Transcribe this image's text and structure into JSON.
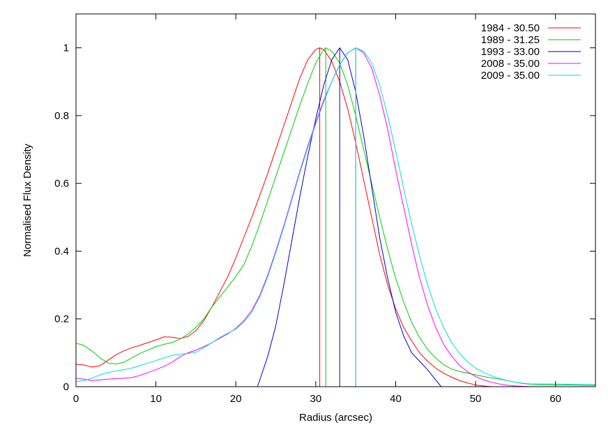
{
  "chart_data": {
    "type": "line",
    "title": "",
    "xlabel": "Radius (arcsec)",
    "ylabel": "Normalised Flux Density",
    "xlim": [
      0,
      65
    ],
    "ylim": [
      0,
      1.1
    ],
    "xticks": [
      0,
      10,
      20,
      30,
      40,
      50,
      60
    ],
    "yticks": [
      0,
      0.2,
      0.4,
      0.6,
      0.8,
      1
    ],
    "ytick_labels": [
      "0",
      "0.2",
      "0.4",
      "0.6",
      "0.8",
      "1"
    ],
    "xtick_labels": [
      "0",
      "10",
      "20",
      "30",
      "40",
      "50",
      "60"
    ],
    "grid": false,
    "legend_position": "top-right",
    "series": [
      {
        "name": "1984 - 30.50",
        "color": "#ff0000",
        "peak_x": 30.5,
        "points": [
          [
            0,
            0.066
          ],
          [
            1,
            0.064
          ],
          [
            2,
            0.058
          ],
          [
            3,
            0.062
          ],
          [
            4,
            0.078
          ],
          [
            5,
            0.094
          ],
          [
            6,
            0.106
          ],
          [
            7,
            0.115
          ],
          [
            8,
            0.122
          ],
          [
            9,
            0.13
          ],
          [
            10,
            0.138
          ],
          [
            11,
            0.147
          ],
          [
            12,
            0.146
          ],
          [
            13,
            0.142
          ],
          [
            14,
            0.148
          ],
          [
            15,
            0.165
          ],
          [
            16,
            0.195
          ],
          [
            17,
            0.235
          ],
          [
            18,
            0.28
          ],
          [
            19,
            0.325
          ],
          [
            20,
            0.38
          ],
          [
            21,
            0.44
          ],
          [
            22,
            0.5
          ],
          [
            23,
            0.565
          ],
          [
            24,
            0.63
          ],
          [
            25,
            0.7
          ],
          [
            26,
            0.77
          ],
          [
            27,
            0.84
          ],
          [
            28,
            0.91
          ],
          [
            29,
            0.965
          ],
          [
            30,
            0.995
          ],
          [
            30.5,
            1
          ],
          [
            31,
            0.995
          ],
          [
            32,
            0.96
          ],
          [
            33,
            0.9
          ],
          [
            34,
            0.82
          ],
          [
            35,
            0.72
          ],
          [
            36,
            0.61
          ],
          [
            37,
            0.5
          ],
          [
            38,
            0.39
          ],
          [
            39,
            0.3
          ],
          [
            40,
            0.23
          ],
          [
            41,
            0.175
          ],
          [
            42,
            0.135
          ],
          [
            43,
            0.1
          ],
          [
            44,
            0.075
          ],
          [
            45,
            0.055
          ],
          [
            46,
            0.04
          ],
          [
            47,
            0.028
          ],
          [
            48,
            0.018
          ],
          [
            49,
            0.011
          ],
          [
            50,
            0.005
          ],
          [
            51,
            0.002
          ],
          [
            52,
            0
          ]
        ]
      },
      {
        "name": "1989 - 31.25",
        "color": "#00cc00",
        "peak_x": 31.25,
        "points": [
          [
            0,
            0.128
          ],
          [
            1,
            0.122
          ],
          [
            2,
            0.105
          ],
          [
            3,
            0.085
          ],
          [
            4,
            0.07
          ],
          [
            5,
            0.067
          ],
          [
            6,
            0.072
          ],
          [
            7,
            0.085
          ],
          [
            8,
            0.098
          ],
          [
            9,
            0.108
          ],
          [
            10,
            0.118
          ],
          [
            11,
            0.125
          ],
          [
            12,
            0.13
          ],
          [
            13,
            0.14
          ],
          [
            14,
            0.155
          ],
          [
            15,
            0.175
          ],
          [
            16,
            0.2
          ],
          [
            17,
            0.235
          ],
          [
            18,
            0.265
          ],
          [
            19,
            0.295
          ],
          [
            20,
            0.325
          ],
          [
            21,
            0.36
          ],
          [
            22,
            0.415
          ],
          [
            23,
            0.48
          ],
          [
            24,
            0.55
          ],
          [
            25,
            0.62
          ],
          [
            26,
            0.69
          ],
          [
            27,
            0.76
          ],
          [
            28,
            0.83
          ],
          [
            29,
            0.895
          ],
          [
            30,
            0.955
          ],
          [
            31,
            0.995
          ],
          [
            31.25,
            1
          ],
          [
            32,
            0.99
          ],
          [
            33,
            0.955
          ],
          [
            34,
            0.89
          ],
          [
            35,
            0.8
          ],
          [
            36,
            0.7
          ],
          [
            37,
            0.6
          ],
          [
            38,
            0.5
          ],
          [
            39,
            0.405
          ],
          [
            40,
            0.32
          ],
          [
            41,
            0.25
          ],
          [
            42,
            0.19
          ],
          [
            43,
            0.145
          ],
          [
            44,
            0.11
          ],
          [
            45,
            0.085
          ],
          [
            46,
            0.065
          ],
          [
            47,
            0.052
          ],
          [
            48,
            0.045
          ],
          [
            49,
            0.04
          ],
          [
            50,
            0.035
          ],
          [
            51,
            0.03
          ],
          [
            52,
            0.026
          ],
          [
            53,
            0.022
          ],
          [
            54,
            0.018
          ],
          [
            55,
            0.013
          ],
          [
            56,
            0.009
          ],
          [
            57,
            0.007
          ],
          [
            58,
            0.006
          ],
          [
            60,
            0.005
          ],
          [
            62,
            0.005
          ],
          [
            64,
            0.004
          ],
          [
            65,
            0.004
          ]
        ]
      },
      {
        "name": "1993 - 33.00",
        "color": "#0000cc",
        "peak_x": 33.0,
        "points": [
          [
            22.7,
            0
          ],
          [
            23,
            0.02
          ],
          [
            24,
            0.09
          ],
          [
            25,
            0.18
          ],
          [
            26,
            0.3
          ],
          [
            27,
            0.43
          ],
          [
            28,
            0.56
          ],
          [
            29,
            0.68
          ],
          [
            30,
            0.79
          ],
          [
            31,
            0.89
          ],
          [
            32,
            0.965
          ],
          [
            33,
            1
          ],
          [
            34,
            0.965
          ],
          [
            35,
            0.87
          ],
          [
            36,
            0.74
          ],
          [
            37,
            0.59
          ],
          [
            38,
            0.44
          ],
          [
            39,
            0.32
          ],
          [
            40,
            0.22
          ],
          [
            41,
            0.15
          ],
          [
            42,
            0.1
          ],
          [
            43,
            0.075
          ],
          [
            44,
            0.05
          ],
          [
            45,
            0.02
          ],
          [
            45.7,
            0
          ]
        ]
      },
      {
        "name": "2008 - 35.00",
        "color": "#ff00ff",
        "peak_x": 35.0,
        "points": [
          [
            0,
            0.025
          ],
          [
            1,
            0.022
          ],
          [
            2,
            0.018
          ],
          [
            3,
            0.02
          ],
          [
            4,
            0.022
          ],
          [
            5,
            0.024
          ],
          [
            6,
            0.025
          ],
          [
            7,
            0.027
          ],
          [
            8,
            0.033
          ],
          [
            9,
            0.042
          ],
          [
            10,
            0.05
          ],
          [
            11,
            0.06
          ],
          [
            12,
            0.072
          ],
          [
            13,
            0.088
          ],
          [
            14,
            0.1
          ],
          [
            15,
            0.108
          ],
          [
            16,
            0.118
          ],
          [
            17,
            0.13
          ],
          [
            18,
            0.143
          ],
          [
            19,
            0.156
          ],
          [
            20,
            0.172
          ],
          [
            21,
            0.195
          ],
          [
            22,
            0.225
          ],
          [
            23,
            0.27
          ],
          [
            24,
            0.33
          ],
          [
            25,
            0.4
          ],
          [
            26,
            0.475
          ],
          [
            27,
            0.555
          ],
          [
            28,
            0.635
          ],
          [
            29,
            0.71
          ],
          [
            30,
            0.78
          ],
          [
            31,
            0.845
          ],
          [
            32,
            0.9
          ],
          [
            33,
            0.95
          ],
          [
            34,
            0.985
          ],
          [
            35,
            1
          ],
          [
            36,
            0.985
          ],
          [
            37,
            0.94
          ],
          [
            38,
            0.86
          ],
          [
            39,
            0.76
          ],
          [
            40,
            0.64
          ],
          [
            41,
            0.53
          ],
          [
            42,
            0.42
          ],
          [
            43,
            0.32
          ],
          [
            44,
            0.24
          ],
          [
            45,
            0.175
          ],
          [
            46,
            0.125
          ],
          [
            47,
            0.09
          ],
          [
            48,
            0.063
          ],
          [
            49,
            0.044
          ],
          [
            50,
            0.03
          ],
          [
            51,
            0.02
          ],
          [
            52,
            0.013
          ],
          [
            53,
            0.008
          ],
          [
            54,
            0.004
          ],
          [
            55,
            0.002
          ],
          [
            56,
            0.001
          ],
          [
            57,
            0
          ]
        ]
      },
      {
        "name": "2009 - 35.00",
        "color": "#00dddd",
        "peak_x": 35.0,
        "points": [
          [
            0,
            0.015
          ],
          [
            1,
            0.018
          ],
          [
            2,
            0.025
          ],
          [
            3,
            0.035
          ],
          [
            4,
            0.042
          ],
          [
            5,
            0.046
          ],
          [
            6,
            0.05
          ],
          [
            7,
            0.055
          ],
          [
            8,
            0.062
          ],
          [
            9,
            0.07
          ],
          [
            10,
            0.077
          ],
          [
            11,
            0.085
          ],
          [
            12,
            0.092
          ],
          [
            13,
            0.096
          ],
          [
            14,
            0.098
          ],
          [
            15,
            0.102
          ],
          [
            16,
            0.115
          ],
          [
            17,
            0.13
          ],
          [
            18,
            0.145
          ],
          [
            19,
            0.158
          ],
          [
            20,
            0.17
          ],
          [
            21,
            0.19
          ],
          [
            22,
            0.22
          ],
          [
            23,
            0.265
          ],
          [
            24,
            0.325
          ],
          [
            25,
            0.395
          ],
          [
            26,
            0.47
          ],
          [
            27,
            0.55
          ],
          [
            28,
            0.63
          ],
          [
            29,
            0.705
          ],
          [
            30,
            0.775
          ],
          [
            31,
            0.84
          ],
          [
            32,
            0.9
          ],
          [
            33,
            0.95
          ],
          [
            34,
            0.985
          ],
          [
            35,
            1
          ],
          [
            36,
            0.99
          ],
          [
            37,
            0.955
          ],
          [
            38,
            0.89
          ],
          [
            39,
            0.8
          ],
          [
            40,
            0.695
          ],
          [
            41,
            0.585
          ],
          [
            42,
            0.48
          ],
          [
            43,
            0.385
          ],
          [
            44,
            0.3
          ],
          [
            45,
            0.23
          ],
          [
            46,
            0.175
          ],
          [
            47,
            0.13
          ],
          [
            48,
            0.098
          ],
          [
            49,
            0.073
          ],
          [
            50,
            0.055
          ],
          [
            51,
            0.042
          ],
          [
            52,
            0.032
          ],
          [
            53,
            0.024
          ],
          [
            54,
            0.018
          ],
          [
            55,
            0.013
          ],
          [
            56,
            0.01
          ],
          [
            57,
            0.008
          ],
          [
            58,
            0.008
          ],
          [
            60,
            0.008
          ],
          [
            62,
            0.007
          ],
          [
            64,
            0.006
          ],
          [
            65,
            0.006
          ]
        ]
      }
    ]
  }
}
